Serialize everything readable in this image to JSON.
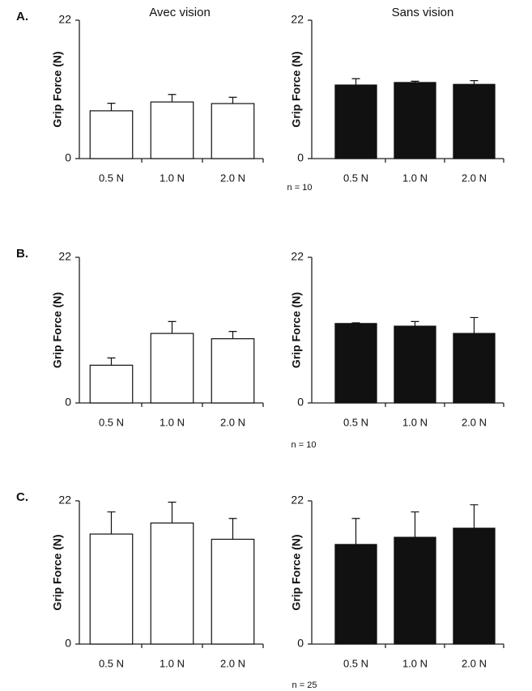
{
  "figure": {
    "column_titles": [
      "Avec vision",
      "Sans vision"
    ],
    "panels": [
      {
        "label": "A.",
        "n": "n = 10"
      },
      {
        "label": "B.",
        "n": "n = 10"
      },
      {
        "label": "C.",
        "n": "n = 25"
      }
    ]
  },
  "chart_data": [
    {
      "type": "bar",
      "ylabel": "Grip Force (N)",
      "categories": [
        "0.5 N",
        "1.0 N",
        "2.0 N"
      ],
      "values": [
        7.6,
        9.0,
        8.75
      ],
      "errors": [
        1.2,
        1.2,
        1.0
      ],
      "color": "#ffffff",
      "ylim": [
        0,
        22
      ],
      "yticks": [
        0,
        22
      ]
    },
    {
      "type": "bar",
      "ylabel": "Grip Force (N)",
      "categories": [
        "0.5 N",
        "1.0 N",
        "2.0 N"
      ],
      "values": [
        11.7,
        12.1,
        11.8
      ],
      "errors": [
        1.0,
        0.2,
        0.6
      ],
      "color": "#111111",
      "ylim": [
        0,
        22
      ],
      "yticks": [
        0,
        22
      ]
    },
    {
      "type": "bar",
      "ylabel": "Grip Force (N)",
      "categories": [
        "0.5 N",
        "1.0 N",
        "2.0 N"
      ],
      "values": [
        5.7,
        10.5,
        9.7
      ],
      "errors": [
        1.1,
        1.8,
        1.1
      ],
      "color": "#ffffff",
      "ylim": [
        0,
        22
      ],
      "yticks": [
        0,
        22
      ]
    },
    {
      "type": "bar",
      "ylabel": "Grip Force (N)",
      "categories": [
        "0.5 N",
        "1.0 N",
        "2.0 N"
      ],
      "values": [
        12.0,
        11.6,
        10.5
      ],
      "errors": [
        0.1,
        0.7,
        2.4
      ],
      "color": "#111111",
      "ylim": [
        0,
        22
      ],
      "yticks": [
        0,
        22
      ]
    },
    {
      "type": "bar",
      "ylabel": "Grip Force (N)",
      "categories": [
        "0.5 N",
        "1.0 N",
        "2.0 N"
      ],
      "values": [
        16.9,
        18.6,
        16.1
      ],
      "errors": [
        3.4,
        3.2,
        3.2
      ],
      "color": "#ffffff",
      "ylim": [
        0,
        22
      ],
      "yticks": [
        0,
        22
      ]
    },
    {
      "type": "bar",
      "ylabel": "Grip Force (N)",
      "categories": [
        "0.5 N",
        "1.0 N",
        "2.0 N"
      ],
      "values": [
        15.3,
        16.4,
        17.8
      ],
      "errors": [
        4.0,
        3.9,
        3.6
      ],
      "color": "#111111",
      "ylim": [
        0,
        22
      ],
      "yticks": [
        0,
        22
      ]
    }
  ]
}
